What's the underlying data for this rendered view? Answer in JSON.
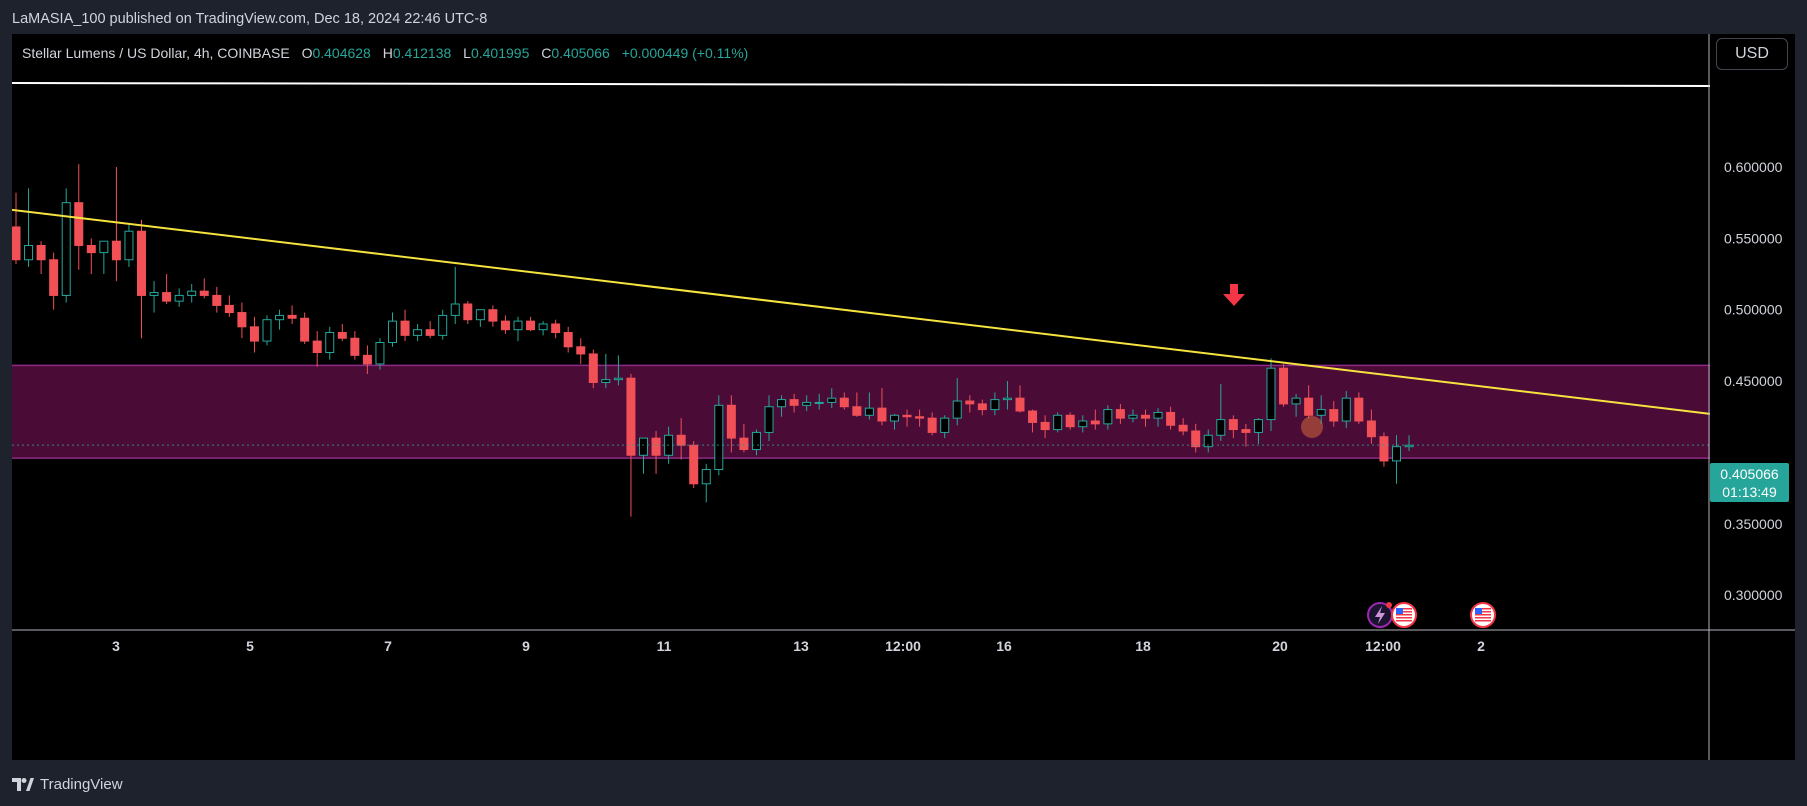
{
  "header": {
    "published_line": "LaMASIA_100 published on TradingView.com, Dec 18, 2024 22:46 UTC-8"
  },
  "legend": {
    "symbol": "Stellar Lumens / US Dollar, 4h, COINBASE",
    "o_label": "O",
    "o_value": "0.404628",
    "h_label": "H",
    "h_value": "0.412138",
    "l_label": "L",
    "l_value": "0.401995",
    "c_label": "C",
    "c_value": "0.405066",
    "change": "+0.000449 (+0.11%)"
  },
  "currency_button": "USD",
  "last_price": {
    "price": "0.405066",
    "countdown": "01:13:49"
  },
  "footer": {
    "brand": "TradingView"
  },
  "colors": {
    "up": "#26a69a",
    "down": "#f05056",
    "zone_fill": "#4f0c3a",
    "zone_border": "#8e2a86",
    "trendline": "#f5e33f",
    "resistance_line": "#ffffff",
    "arrow": "#f23645"
  },
  "chart_data": {
    "type": "candlestick",
    "y_axis": {
      "ticks": [
        "0.600000",
        "0.550000",
        "0.500000",
        "0.450000",
        "0.350000",
        "0.300000"
      ],
      "range": [
        0.25,
        0.67
      ]
    },
    "x_axis": {
      "ticks": [
        "3",
        "5",
        "7",
        "9",
        "11",
        "13",
        "12:00",
        "16",
        "18",
        "20",
        "12:00",
        "2"
      ]
    },
    "candles": [
      [
        0.558,
        0.582,
        0.532,
        0.535
      ],
      [
        0.535,
        0.585,
        0.53,
        0.545
      ],
      [
        0.545,
        0.548,
        0.525,
        0.535
      ],
      [
        0.535,
        0.54,
        0.5,
        0.51
      ],
      [
        0.51,
        0.585,
        0.505,
        0.575
      ],
      [
        0.575,
        0.602,
        0.528,
        0.545
      ],
      [
        0.545,
        0.55,
        0.525,
        0.54
      ],
      [
        0.54,
        0.548,
        0.525,
        0.548
      ],
      [
        0.548,
        0.6,
        0.52,
        0.535
      ],
      [
        0.535,
        0.56,
        0.53,
        0.555
      ],
      [
        0.555,
        0.563,
        0.48,
        0.51
      ],
      [
        0.51,
        0.52,
        0.498,
        0.512
      ],
      [
        0.512,
        0.525,
        0.504,
        0.506
      ],
      [
        0.506,
        0.515,
        0.502,
        0.51
      ],
      [
        0.51,
        0.518,
        0.505,
        0.513
      ],
      [
        0.513,
        0.522,
        0.508,
        0.51
      ],
      [
        0.51,
        0.516,
        0.498,
        0.503
      ],
      [
        0.503,
        0.51,
        0.495,
        0.498
      ],
      [
        0.498,
        0.505,
        0.48,
        0.488
      ],
      [
        0.488,
        0.495,
        0.47,
        0.478
      ],
      [
        0.478,
        0.496,
        0.475,
        0.493
      ],
      [
        0.493,
        0.5,
        0.486,
        0.496
      ],
      [
        0.496,
        0.503,
        0.49,
        0.494
      ],
      [
        0.494,
        0.498,
        0.476,
        0.478
      ],
      [
        0.478,
        0.485,
        0.46,
        0.47
      ],
      [
        0.47,
        0.488,
        0.465,
        0.484
      ],
      [
        0.484,
        0.49,
        0.478,
        0.48
      ],
      [
        0.48,
        0.485,
        0.465,
        0.468
      ],
      [
        0.468,
        0.475,
        0.455,
        0.462
      ],
      [
        0.462,
        0.48,
        0.458,
        0.477
      ],
      [
        0.477,
        0.498,
        0.474,
        0.492
      ],
      [
        0.492,
        0.5,
        0.478,
        0.482
      ],
      [
        0.482,
        0.49,
        0.478,
        0.486
      ],
      [
        0.486,
        0.492,
        0.48,
        0.482
      ],
      [
        0.482,
        0.5,
        0.479,
        0.496
      ],
      [
        0.496,
        0.53,
        0.49,
        0.504
      ],
      [
        0.504,
        0.506,
        0.49,
        0.493
      ],
      [
        0.493,
        0.5,
        0.488,
        0.5
      ],
      [
        0.5,
        0.503,
        0.488,
        0.492
      ],
      [
        0.492,
        0.496,
        0.483,
        0.486
      ],
      [
        0.486,
        0.495,
        0.478,
        0.492
      ],
      [
        0.492,
        0.495,
        0.485,
        0.486
      ],
      [
        0.486,
        0.492,
        0.482,
        0.49
      ],
      [
        0.49,
        0.493,
        0.48,
        0.484
      ],
      [
        0.484,
        0.488,
        0.47,
        0.474
      ],
      [
        0.474,
        0.48,
        0.462,
        0.469
      ],
      [
        0.469,
        0.472,
        0.445,
        0.449
      ],
      [
        0.449,
        0.469,
        0.445,
        0.451
      ],
      [
        0.451,
        0.468,
        0.447,
        0.452
      ],
      [
        0.452,
        0.455,
        0.355,
        0.398
      ],
      [
        0.398,
        0.41,
        0.385,
        0.41
      ],
      [
        0.41,
        0.415,
        0.385,
        0.398
      ],
      [
        0.398,
        0.418,
        0.392,
        0.412
      ],
      [
        0.412,
        0.424,
        0.395,
        0.405
      ],
      [
        0.405,
        0.408,
        0.375,
        0.378
      ],
      [
        0.378,
        0.392,
        0.365,
        0.388
      ],
      [
        0.388,
        0.44,
        0.384,
        0.433
      ],
      [
        0.433,
        0.44,
        0.4,
        0.41
      ],
      [
        0.41,
        0.42,
        0.4,
        0.402
      ],
      [
        0.402,
        0.416,
        0.398,
        0.414
      ],
      [
        0.414,
        0.44,
        0.408,
        0.432
      ],
      [
        0.432,
        0.44,
        0.425,
        0.437
      ],
      [
        0.437,
        0.441,
        0.428,
        0.433
      ],
      [
        0.433,
        0.44,
        0.429,
        0.435
      ],
      [
        0.435,
        0.441,
        0.43,
        0.435
      ],
      [
        0.435,
        0.445,
        0.431,
        0.438
      ],
      [
        0.438,
        0.442,
        0.43,
        0.432
      ],
      [
        0.432,
        0.442,
        0.425,
        0.426
      ],
      [
        0.426,
        0.442,
        0.423,
        0.431
      ],
      [
        0.431,
        0.445,
        0.419,
        0.422
      ],
      [
        0.422,
        0.427,
        0.416,
        0.426
      ],
      [
        0.426,
        0.43,
        0.418,
        0.425
      ],
      [
        0.425,
        0.43,
        0.418,
        0.424
      ],
      [
        0.424,
        0.428,
        0.412,
        0.414
      ],
      [
        0.414,
        0.426,
        0.41,
        0.424
      ],
      [
        0.424,
        0.452,
        0.419,
        0.436
      ],
      [
        0.436,
        0.44,
        0.428,
        0.434
      ],
      [
        0.434,
        0.437,
        0.426,
        0.43
      ],
      [
        0.43,
        0.442,
        0.426,
        0.437
      ],
      [
        0.437,
        0.45,
        0.43,
        0.438
      ],
      [
        0.438,
        0.447,
        0.428,
        0.429
      ],
      [
        0.429,
        0.43,
        0.414,
        0.421
      ],
      [
        0.421,
        0.426,
        0.41,
        0.416
      ],
      [
        0.416,
        0.428,
        0.414,
        0.426
      ],
      [
        0.426,
        0.428,
        0.416,
        0.418
      ],
      [
        0.418,
        0.426,
        0.414,
        0.422
      ],
      [
        0.422,
        0.43,
        0.416,
        0.42
      ],
      [
        0.42,
        0.433,
        0.416,
        0.43
      ],
      [
        0.43,
        0.434,
        0.42,
        0.424
      ],
      [
        0.424,
        0.43,
        0.421,
        0.426
      ],
      [
        0.426,
        0.43,
        0.418,
        0.424
      ],
      [
        0.424,
        0.431,
        0.418,
        0.428
      ],
      [
        0.428,
        0.432,
        0.416,
        0.419
      ],
      [
        0.419,
        0.424,
        0.412,
        0.415
      ],
      [
        0.415,
        0.42,
        0.4,
        0.404
      ],
      [
        0.404,
        0.416,
        0.4,
        0.412
      ],
      [
        0.412,
        0.448,
        0.408,
        0.423
      ],
      [
        0.423,
        0.426,
        0.41,
        0.416
      ],
      [
        0.416,
        0.42,
        0.404,
        0.414
      ],
      [
        0.414,
        0.424,
        0.406,
        0.423
      ],
      [
        0.423,
        0.466,
        0.415,
        0.459
      ],
      [
        0.459,
        0.462,
        0.432,
        0.434
      ],
      [
        0.434,
        0.441,
        0.425,
        0.438
      ],
      [
        0.438,
        0.447,
        0.424,
        0.426
      ],
      [
        0.426,
        0.44,
        0.42,
        0.43
      ],
      [
        0.43,
        0.436,
        0.418,
        0.422
      ],
      [
        0.422,
        0.443,
        0.417,
        0.438
      ],
      [
        0.438,
        0.442,
        0.42,
        0.422
      ],
      [
        0.422,
        0.43,
        0.406,
        0.411
      ],
      [
        0.411,
        0.414,
        0.39,
        0.394
      ],
      [
        0.394,
        0.412,
        0.378,
        0.404
      ],
      [
        0.404,
        0.412,
        0.401,
        0.405
      ]
    ],
    "annotations": {
      "resistance_line": 0.635,
      "trendline": {
        "start": 0.57,
        "end": 0.427
      },
      "zone": [
        0.396,
        0.461
      ],
      "current_price": 0.405066
    }
  }
}
